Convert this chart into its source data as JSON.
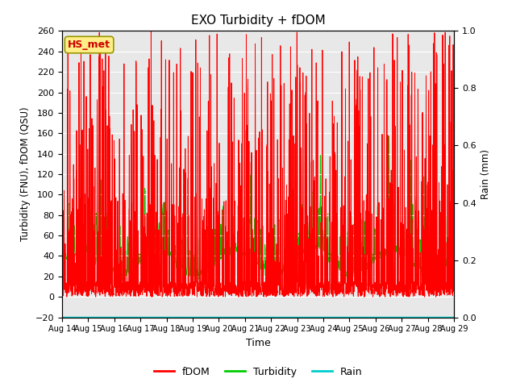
{
  "title": "EXO Turbidity + fDOM",
  "xlabel": "Time",
  "ylabel_left": "Turbidity (FNU), fDOM (QSU)",
  "ylabel_right": "Rain (mm)",
  "ylim_left": [
    -20,
    260
  ],
  "ylim_right": [
    0.0,
    1.0
  ],
  "yticks_left": [
    -20,
    0,
    20,
    40,
    60,
    80,
    100,
    120,
    140,
    160,
    180,
    200,
    220,
    240,
    260
  ],
  "yticks_right": [
    0.0,
    0.2,
    0.4,
    0.6,
    0.8,
    1.0
  ],
  "xtick_labels": [
    "Aug 14",
    "Aug 15",
    "Aug 16",
    "Aug 17",
    "Aug 18",
    "Aug 19",
    "Aug 20",
    "Aug 21",
    "Aug 22",
    "Aug 23",
    "Aug 24",
    "Aug 25",
    "Aug 26",
    "Aug 27",
    "Aug 28",
    "Aug 29"
  ],
  "fdom_color": "#ff0000",
  "turbidity_color": "#00cc00",
  "rain_color": "#00cccc",
  "annotation_text": "HS_met",
  "annotation_bg": "#ffee88",
  "annotation_border": "#999900",
  "bg_color": "#e8e8e8",
  "legend_labels": [
    "fDOM",
    "Turbidity",
    "Rain"
  ],
  "legend_colors": [
    "#ff0000",
    "#00cc00",
    "#00cccc"
  ],
  "fig_width": 6.4,
  "fig_height": 4.8,
  "dpi": 100
}
